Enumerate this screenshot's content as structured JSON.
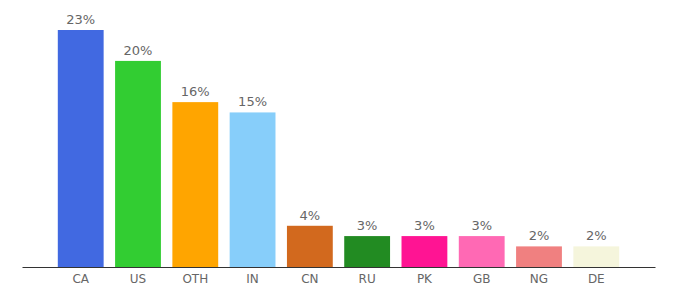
{
  "chart_data": {
    "type": "bar",
    "categories": [
      "CA",
      "US",
      "OTH",
      "IN",
      "CN",
      "RU",
      "PK",
      "GB",
      "NG",
      "DE"
    ],
    "values": [
      23,
      20,
      16,
      15,
      4,
      3,
      3,
      3,
      2,
      2
    ],
    "value_labels": [
      "23%",
      "20%",
      "16%",
      "15%",
      "4%",
      "3%",
      "3%",
      "3%",
      "2%",
      "2%"
    ],
    "colors": [
      "#4169e1",
      "#32cd32",
      "#ffa500",
      "#87cefa",
      "#d2691e",
      "#228b22",
      "#ff1493",
      "#ff69b4",
      "#f08080",
      "#f5f5dc"
    ],
    "data_labels": true,
    "tick_labels": "x"
  }
}
